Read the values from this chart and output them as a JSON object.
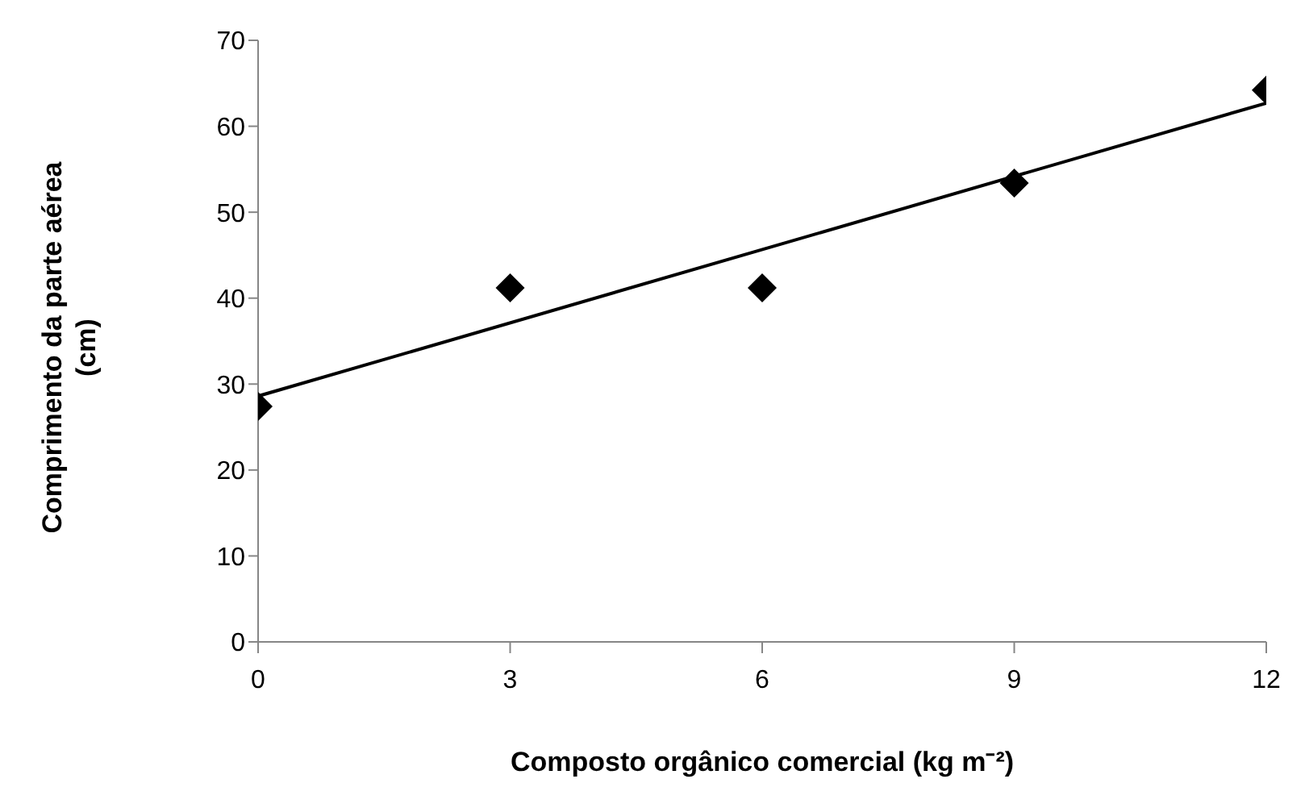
{
  "chart_data": {
    "type": "scatter",
    "xlabel": "Composto orgânico comercial (kg m⁻²)",
    "ylabel": "Comprimento da parte aérea (cm)",
    "xlim": [
      0,
      12
    ],
    "xticks": [
      0,
      3,
      6,
      9,
      12
    ],
    "ylim": [
      0,
      70
    ],
    "yticks": [
      0,
      10,
      20,
      30,
      40,
      50,
      60,
      70
    ],
    "grid": false,
    "marker": "diamond",
    "x": [
      0,
      3,
      6,
      9,
      12
    ],
    "series": [
      {
        "type": "line",
        "x": [
          0,
          12
        ],
        "values": [
          28.6,
          62.7
        ],
        "color": "#000000",
        "marker": "none",
        "line_style": "solid"
      },
      {
        "values": [
          27.4,
          41.2,
          41.2,
          53.4,
          64.2
        ],
        "color": "#000000"
      }
    ]
  }
}
